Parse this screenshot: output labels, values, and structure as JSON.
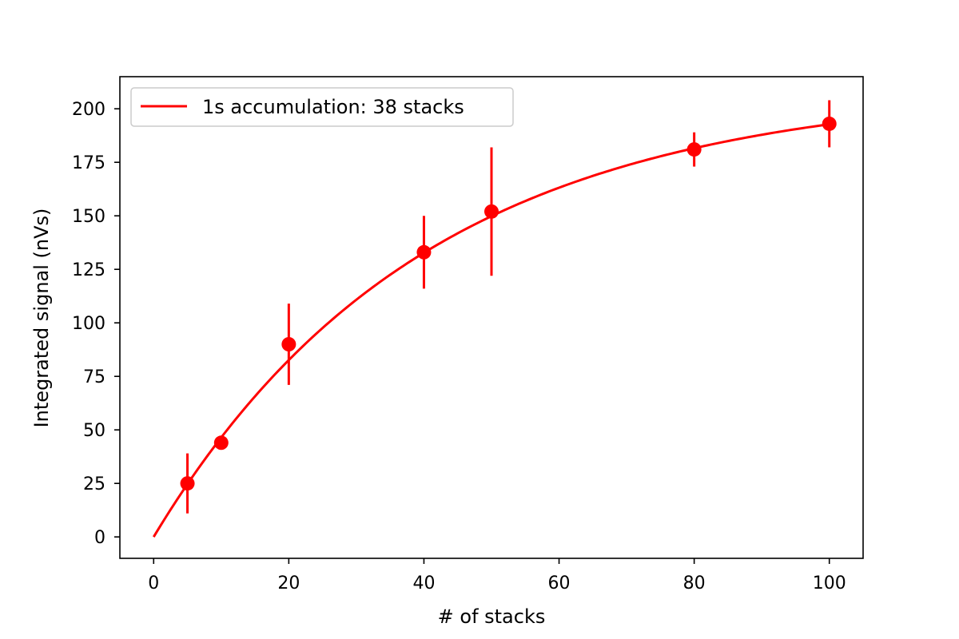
{
  "chart_data": {
    "type": "scatter",
    "title": "",
    "xlabel": "# of stacks",
    "ylabel": "Integrated signal (nVs)",
    "xlim": [
      -5,
      105
    ],
    "ylim": [
      -10,
      215
    ],
    "xticks": [
      0,
      20,
      40,
      60,
      80,
      100
    ],
    "yticks": [
      0,
      25,
      50,
      75,
      100,
      125,
      150,
      175,
      200
    ],
    "grid": false,
    "legend": {
      "position": "top-left",
      "entries": [
        "1s accumulation: 38 stacks"
      ]
    },
    "series": [
      {
        "name": "1s accumulation: 38 stacks",
        "kind": "fit-line",
        "color": "#ff0000",
        "model": "A*(1-exp(-x/tau))",
        "A": 210,
        "tau": 40,
        "x_range": [
          0,
          100
        ]
      },
      {
        "kind": "points-with-errorbars",
        "color": "#ff0000",
        "points": [
          {
            "x": 5,
            "y": 25,
            "yerr_low": 14,
            "yerr_high": 14
          },
          {
            "x": 10,
            "y": 44,
            "yerr_low": 0,
            "yerr_high": 0
          },
          {
            "x": 20,
            "y": 90,
            "yerr_low": 19,
            "yerr_high": 19
          },
          {
            "x": 40,
            "y": 133,
            "yerr_low": 17,
            "yerr_high": 17
          },
          {
            "x": 50,
            "y": 152,
            "yerr_low": 30,
            "yerr_high": 30
          },
          {
            "x": 80,
            "y": 181,
            "yerr_low": 8,
            "yerr_high": 8
          },
          {
            "x": 100,
            "y": 193,
            "yerr_low": 11,
            "yerr_high": 11
          }
        ]
      }
    ]
  }
}
